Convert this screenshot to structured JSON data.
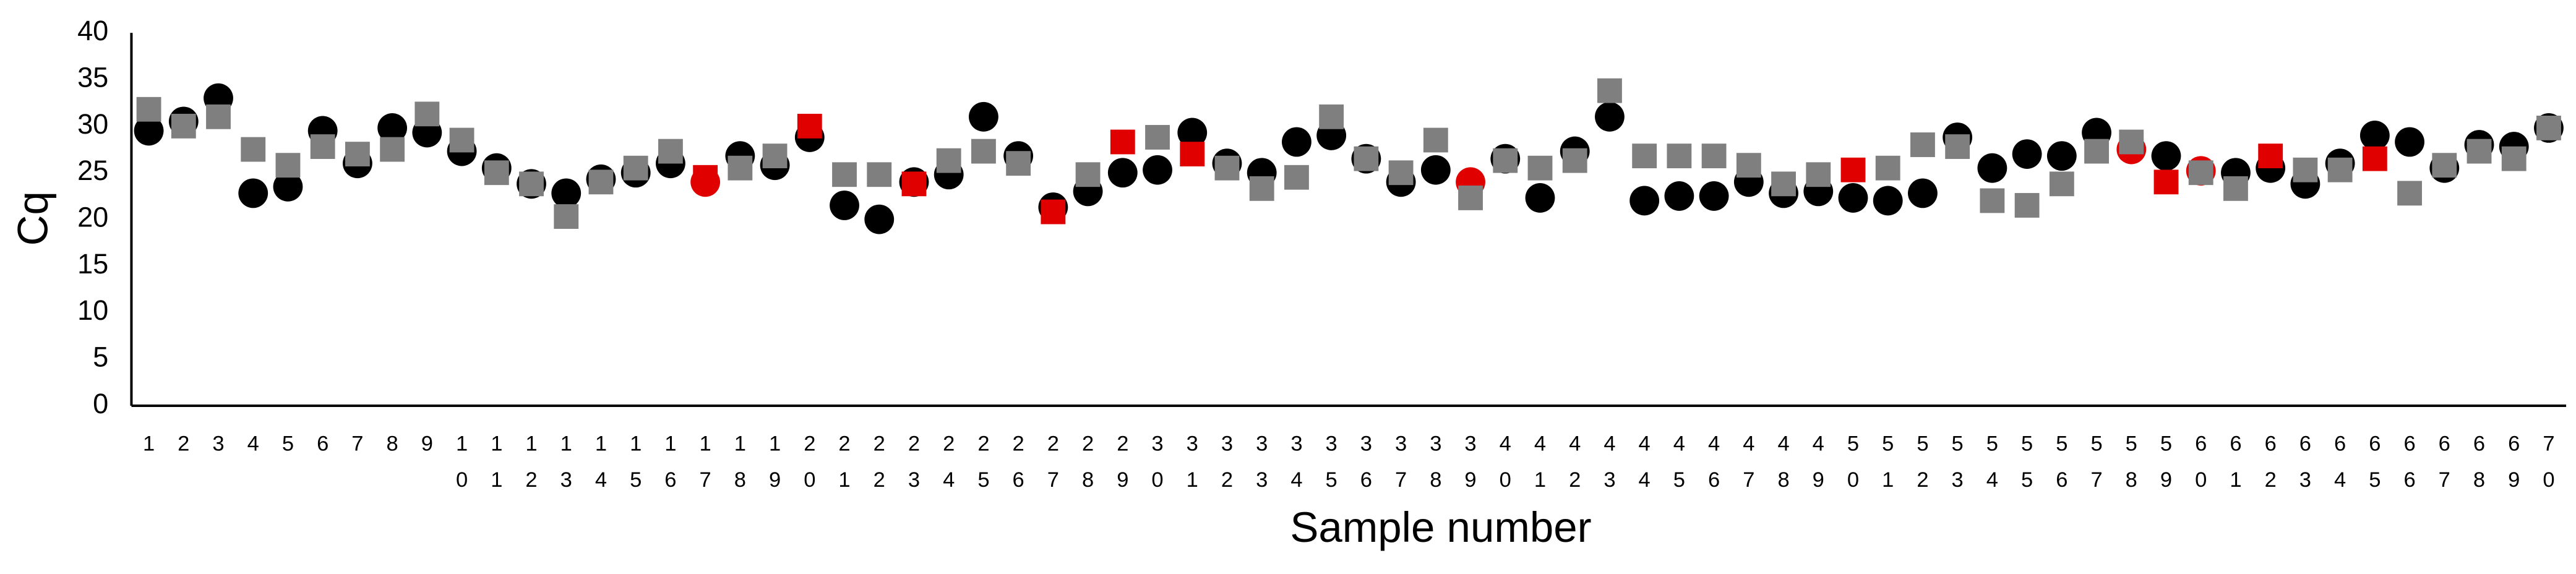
{
  "chart_data": {
    "type": "scatter",
    "x_label": "Sample number",
    "y_label": "Cq",
    "categories": [
      "1",
      "2",
      "3",
      "4",
      "5",
      "6",
      "7",
      "8",
      "9",
      "10",
      "11",
      "12",
      "13",
      "14",
      "15",
      "16",
      "17",
      "18",
      "19",
      "20",
      "21",
      "22",
      "23",
      "24",
      "25",
      "26",
      "27",
      "28",
      "29",
      "30",
      "31",
      "32",
      "33",
      "34",
      "35",
      "36",
      "37",
      "38",
      "39",
      "40",
      "41",
      "42",
      "43",
      "44",
      "45",
      "46",
      "47",
      "48",
      "49",
      "50",
      "51",
      "52",
      "53",
      "54",
      "55",
      "56",
      "57",
      "58",
      "59",
      "60",
      "61",
      "62",
      "63",
      "64",
      "65",
      "66",
      "67",
      "68",
      "69",
      "70"
    ],
    "ylim": [
      0,
      40
    ],
    "yticks": [
      0,
      5,
      10,
      15,
      20,
      25,
      30,
      35,
      40
    ],
    "grid": false,
    "series": [
      {
        "marker": "circle",
        "color": "#000000",
        "values": [
          29.5,
          30.5,
          33.0,
          22.8,
          23.5,
          29.5,
          26.0,
          29.8,
          29.3,
          27.3,
          25.5,
          23.8,
          22.8,
          24.3,
          25.0,
          26.0,
          24.0,
          26.8,
          25.8,
          28.8,
          21.5,
          20.0,
          24.0,
          24.8,
          31.0,
          26.8,
          21.3,
          23.0,
          25.0,
          25.3,
          29.3,
          26.0,
          25.0,
          28.3,
          29.0,
          26.5,
          24.0,
          25.3,
          24.0,
          26.5,
          22.3,
          27.3,
          31.0,
          22.0,
          22.5,
          22.5,
          24.0,
          22.8,
          23.0,
          22.3,
          22.0,
          22.8,
          28.8,
          25.5,
          27.0,
          26.8,
          29.3,
          27.5,
          26.8,
          25.2,
          25.0,
          25.5,
          23.8,
          26.0,
          29.0,
          28.3,
          25.5,
          28.0,
          27.8,
          29.8
        ],
        "colors": [
          "#000000",
          "#000000",
          "#000000",
          "#000000",
          "#000000",
          "#000000",
          "#000000",
          "#000000",
          "#000000",
          "#000000",
          "#000000",
          "#000000",
          "#000000",
          "#000000",
          "#000000",
          "#000000",
          "#e00000",
          "#000000",
          "#000000",
          "#000000",
          "#000000",
          "#000000",
          "#000000",
          "#000000",
          "#000000",
          "#000000",
          "#000000",
          "#000000",
          "#000000",
          "#000000",
          "#000000",
          "#000000",
          "#000000",
          "#000000",
          "#000000",
          "#000000",
          "#000000",
          "#000000",
          "#e00000",
          "#000000",
          "#000000",
          "#000000",
          "#000000",
          "#000000",
          "#000000",
          "#000000",
          "#000000",
          "#000000",
          "#000000",
          "#000000",
          "#000000",
          "#000000",
          "#000000",
          "#000000",
          "#000000",
          "#000000",
          "#000000",
          "#e00000",
          "#000000",
          "#e00000",
          "#000000",
          "#000000",
          "#000000",
          "#000000",
          "#000000",
          "#000000",
          "#000000",
          "#000000",
          "#000000",
          "#000000"
        ]
      },
      {
        "marker": "square",
        "color": "#7f7f7f",
        "values": [
          31.8,
          30.0,
          31.0,
          27.5,
          25.8,
          27.8,
          27.0,
          27.5,
          31.3,
          28.5,
          25.0,
          23.8,
          20.3,
          24.0,
          25.5,
          27.3,
          24.5,
          25.5,
          26.8,
          30.0,
          24.8,
          24.8,
          23.8,
          26.3,
          27.3,
          26.0,
          20.8,
          24.8,
          28.3,
          28.8,
          27.0,
          25.5,
          23.3,
          24.5,
          31.0,
          26.5,
          25.0,
          28.5,
          22.3,
          26.3,
          25.5,
          26.3,
          33.8,
          26.8,
          26.8,
          26.8,
          25.8,
          23.8,
          24.8,
          25.3,
          25.5,
          28.0,
          27.8,
          22.0,
          21.5,
          23.8,
          27.3,
          28.3,
          24.0,
          25.0,
          23.3,
          26.8,
          25.3,
          25.3,
          26.5,
          22.8,
          25.8,
          27.3,
          26.5,
          29.8
        ],
        "colors": [
          "#7f7f7f",
          "#7f7f7f",
          "#7f7f7f",
          "#7f7f7f",
          "#7f7f7f",
          "#7f7f7f",
          "#7f7f7f",
          "#7f7f7f",
          "#7f7f7f",
          "#7f7f7f",
          "#7f7f7f",
          "#7f7f7f",
          "#7f7f7f",
          "#7f7f7f",
          "#7f7f7f",
          "#7f7f7f",
          "#e00000",
          "#7f7f7f",
          "#7f7f7f",
          "#e00000",
          "#7f7f7f",
          "#7f7f7f",
          "#e00000",
          "#7f7f7f",
          "#7f7f7f",
          "#7f7f7f",
          "#e00000",
          "#7f7f7f",
          "#e00000",
          "#7f7f7f",
          "#e00000",
          "#7f7f7f",
          "#7f7f7f",
          "#7f7f7f",
          "#7f7f7f",
          "#7f7f7f",
          "#7f7f7f",
          "#7f7f7f",
          "#7f7f7f",
          "#7f7f7f",
          "#7f7f7f",
          "#7f7f7f",
          "#7f7f7f",
          "#7f7f7f",
          "#7f7f7f",
          "#7f7f7f",
          "#7f7f7f",
          "#7f7f7f",
          "#7f7f7f",
          "#e00000",
          "#7f7f7f",
          "#7f7f7f",
          "#7f7f7f",
          "#7f7f7f",
          "#7f7f7f",
          "#7f7f7f",
          "#7f7f7f",
          "#7f7f7f",
          "#e00000",
          "#7f7f7f",
          "#7f7f7f",
          "#e00000",
          "#7f7f7f",
          "#7f7f7f",
          "#e00000",
          "#7f7f7f",
          "#7f7f7f",
          "#7f7f7f",
          "#7f7f7f",
          "#7f7f7f"
        ]
      }
    ]
  }
}
